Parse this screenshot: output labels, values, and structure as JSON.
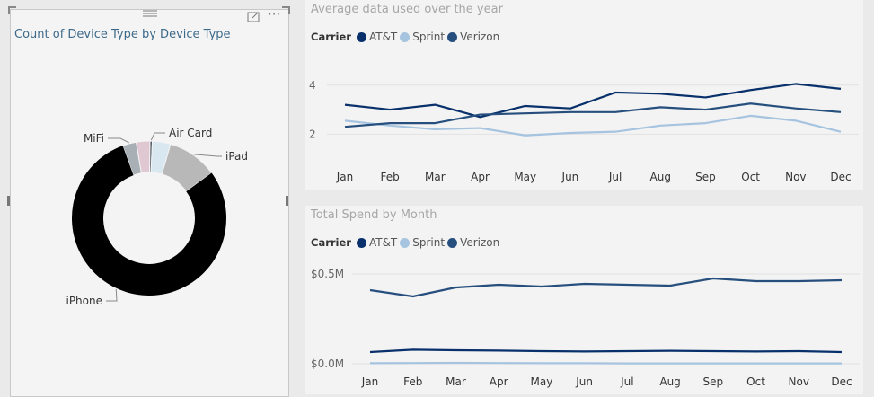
{
  "visuals": {
    "donut": {
      "title": "Count of Device Type by Device Type",
      "chart_data": {
        "type": "pie",
        "title": "Count of Device Type by Device Type",
        "slices": [
          {
            "label": "iPhone",
            "value": 83,
            "color": "#000000"
          },
          {
            "label": "MiFi",
            "value": 3,
            "color": "#a9b0b5"
          },
          {
            "label": "",
            "value": 3,
            "color": "#e0c8d3"
          },
          {
            "label": "Air Card",
            "value": 0.5,
            "color": "#4d5761"
          },
          {
            "label": "",
            "value": 4,
            "color": "#d8e7f0"
          },
          {
            "label": "iPad",
            "value": 11,
            "color": "#b8b8b8"
          }
        ]
      }
    },
    "line1": {
      "title": "Average data used over the year",
      "legend_title": "Carrier",
      "chart_data": {
        "type": "line",
        "title": "Average data used over the year",
        "legend_title": "Carrier",
        "categories": [
          "Jan",
          "Feb",
          "Mar",
          "Apr",
          "May",
          "Jun",
          "Jul",
          "Aug",
          "Sep",
          "Oct",
          "Nov",
          "Dec"
        ],
        "y_ticks": [
          {
            "value": 2,
            "label": "2"
          },
          {
            "value": 4,
            "label": "4"
          }
        ],
        "ylim": [
          0,
          5.2
        ],
        "series": [
          {
            "name": "AT&T",
            "color": "#08306b",
            "values": [
              3.2,
              3.0,
              3.2,
              2.7,
              3.15,
              3.05,
              3.7,
              3.65,
              3.5,
              3.8,
              4.05,
              3.85
            ]
          },
          {
            "name": "Sprint",
            "color": "#a6c4e0",
            "values": [
              2.55,
              2.35,
              2.2,
              2.25,
              1.95,
              2.05,
              2.1,
              2.35,
              2.45,
              2.75,
              2.55,
              2.1
            ]
          },
          {
            "name": "Verizon",
            "color": "#274f7e",
            "values": [
              2.3,
              2.45,
              2.45,
              2.8,
              2.85,
              2.9,
              2.9,
              3.1,
              3.0,
              3.25,
              3.05,
              2.9
            ]
          }
        ]
      }
    },
    "line2": {
      "title": "Total Spend by Month",
      "legend_title": "Carrier",
      "chart_data": {
        "type": "line",
        "title": "Total Spend by Month",
        "legend_title": "Carrier",
        "categories": [
          "Jan",
          "Feb",
          "Mar",
          "Apr",
          "May",
          "Jun",
          "Jul",
          "Aug",
          "Sep",
          "Oct",
          "Nov",
          "Dec"
        ],
        "y_ticks": [
          {
            "value": 0,
            "label": "$0.0M"
          },
          {
            "value": 0.5,
            "label": "$0.5M"
          }
        ],
        "ylim": [
          0,
          0.58
        ],
        "series": [
          {
            "name": "AT&T",
            "color": "#08306b",
            "values": [
              0.065,
              0.078,
              0.075,
              0.073,
              0.07,
              0.068,
              0.07,
              0.072,
              0.07,
              0.068,
              0.07,
              0.065
            ]
          },
          {
            "name": "Sprint",
            "color": "#a6c4e0",
            "values": [
              0.003,
              0.004,
              0.005,
              0.004,
              0.003,
              0.003,
              0.002,
              0.002,
              0.002,
              0.002,
              0.002,
              0.002
            ]
          },
          {
            "name": "Verizon",
            "color": "#274f7e",
            "values": [
              0.41,
              0.375,
              0.425,
              0.44,
              0.43,
              0.445,
              0.44,
              0.435,
              0.475,
              0.46,
              0.46,
              0.465
            ]
          }
        ]
      }
    }
  },
  "icons": {
    "drag": "drag-handle-icon",
    "focus": "focus-mode-icon",
    "more": "more-options-icon"
  }
}
